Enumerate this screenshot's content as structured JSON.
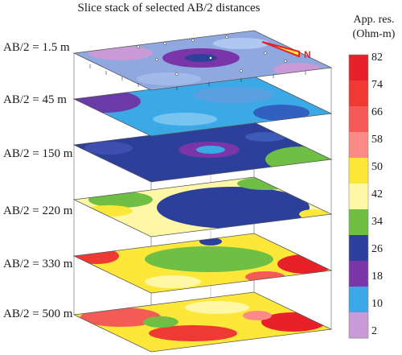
{
  "title": "Slice stack of selected AB/2 distances",
  "slices": [
    {
      "label": "AB/2 = 1.5 m"
    },
    {
      "label": "AB/2 = 45 m"
    },
    {
      "label": "AB/2 = 150 m"
    },
    {
      "label": "AB/2 = 220 m"
    },
    {
      "label": "AB/2 = 330 m"
    },
    {
      "label": "AB/2 = 500 m"
    }
  ],
  "north_arrow": "N",
  "colorbar": {
    "title_line1": "App. res.",
    "title_line2": "(Ohm-m)",
    "ticks": [
      "82",
      "74",
      "66",
      "58",
      "50",
      "42",
      "34",
      "26",
      "18",
      "10",
      "2"
    ],
    "colors": [
      "#e8202a",
      "#ef3a33",
      "#f55b56",
      "#fc8a86",
      "#fde83a",
      "#fef7a6",
      "#6fbf44",
      "#2c3f9b",
      "#7a35a8",
      "#3aa9e6",
      "#c99ad6"
    ]
  }
}
